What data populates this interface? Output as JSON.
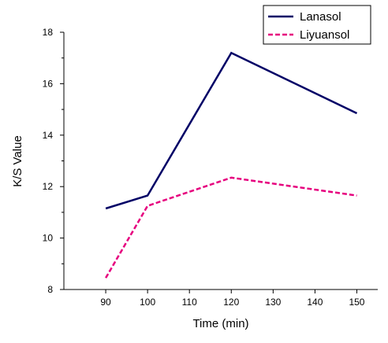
{
  "chart_data": {
    "type": "line",
    "title": "",
    "xlabel": "Time (min)",
    "ylabel": "K/S Value",
    "xlim": [
      80,
      155
    ],
    "ylim": [
      8,
      18
    ],
    "x": [
      90,
      100,
      120,
      150
    ],
    "xticks": [
      "90",
      "100",
      "110",
      "120",
      "130",
      "140",
      "150"
    ],
    "yticks": [
      "8",
      "10",
      "12",
      "14",
      "16",
      "18"
    ],
    "grid": false,
    "legend_position": "top-right",
    "series": [
      {
        "name": "Lanasol",
        "values": [
          11.15,
          11.65,
          17.2,
          14.85
        ],
        "color": "#000066",
        "style": "solid"
      },
      {
        "name": "Liyuansol",
        "values": [
          8.45,
          11.25,
          12.35,
          11.65
        ],
        "color": "#e6007e",
        "style": "dashed"
      }
    ]
  }
}
